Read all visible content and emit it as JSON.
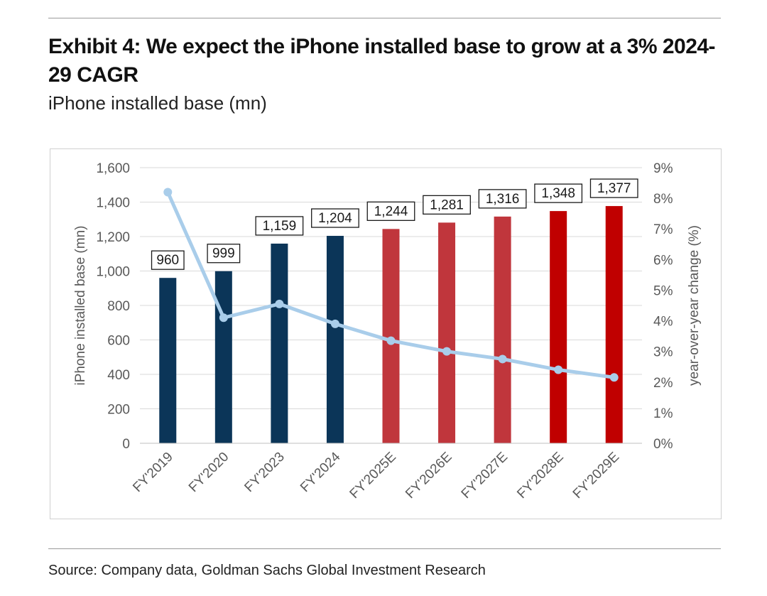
{
  "header": {
    "title": "Exhibit 4: We expect the iPhone installed base to grow at a 3% 2024-29 CAGR",
    "subtitle": "iPhone installed base (mn)"
  },
  "footer": {
    "source": "Source: Company data, Goldman Sachs Global Investment Research"
  },
  "chart_data": {
    "type": "bar",
    "categories": [
      "FY'2019",
      "FY'2020",
      "FY'2023",
      "FY'2024",
      "FY'2025E",
      "FY'2026E",
      "FY'2027E",
      "FY'2028E",
      "FY'2029E"
    ],
    "series": [
      {
        "values": [
          960,
          999,
          1159,
          1204,
          1244,
          1281,
          1316,
          1348,
          1377
        ],
        "data_labels": [
          "960",
          "999",
          "1,159",
          "1,204",
          "1,244",
          "1,281",
          "1,316",
          "1,348",
          "1,377"
        ],
        "colors": [
          "#0b3558",
          "#0b3558",
          "#0b3558",
          "#0b3558",
          "#c0363c",
          "#c0363c",
          "#c0363c",
          "#c00000",
          "#c00000"
        ],
        "axis": "left"
      },
      {
        "type": "line",
        "values": [
          8.2,
          4.1,
          4.55,
          3.9,
          3.35,
          3.0,
          2.75,
          2.4,
          2.15
        ],
        "color": "#a9cdea",
        "axis": "right"
      }
    ],
    "ylabel": "iPhone installed base (mn)",
    "y2label": "year-over-year change (%)",
    "ylim": [
      0,
      1600
    ],
    "yticks": [
      0,
      200,
      400,
      600,
      800,
      1000,
      1200,
      1400,
      1600
    ],
    "ytick_labels": [
      "0",
      "200",
      "400",
      "600",
      "800",
      "1,000",
      "1,200",
      "1,400",
      "1,600"
    ],
    "y2lim": [
      0,
      9
    ],
    "y2ticks": [
      0,
      1,
      2,
      3,
      4,
      5,
      6,
      7,
      8,
      9
    ],
    "y2tick_labels": [
      "0%",
      "1%",
      "2%",
      "3%",
      "4%",
      "5%",
      "6%",
      "7%",
      "8%",
      "9%"
    ],
    "grid": true,
    "legend": "none"
  }
}
